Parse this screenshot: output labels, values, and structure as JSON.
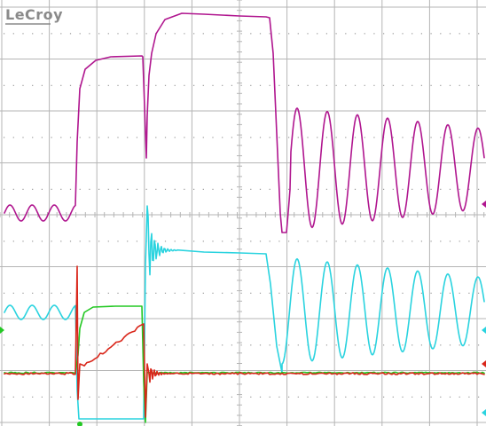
{
  "brand": {
    "text": "LeCroy"
  },
  "colors": {
    "background": "#ffffff",
    "grid": "#b5b5b5",
    "ch1": "#b0168f",
    "ch2": "#2ad3df",
    "ch3": "#23c823",
    "ch4": "#d9261a"
  },
  "traces": [
    {
      "name": "",
      "channel": "ch1",
      "color": "#b0168f"
    },
    {
      "name": "",
      "channel": "ch2",
      "color": "#2ad3df"
    },
    {
      "name": "",
      "channel": "ch3",
      "color": "#23c823"
    },
    {
      "name": "",
      "channel": "ch4",
      "color": "#d9261a"
    }
  ],
  "grid": {
    "divisions_x": 10,
    "divisions_y": 8
  }
}
